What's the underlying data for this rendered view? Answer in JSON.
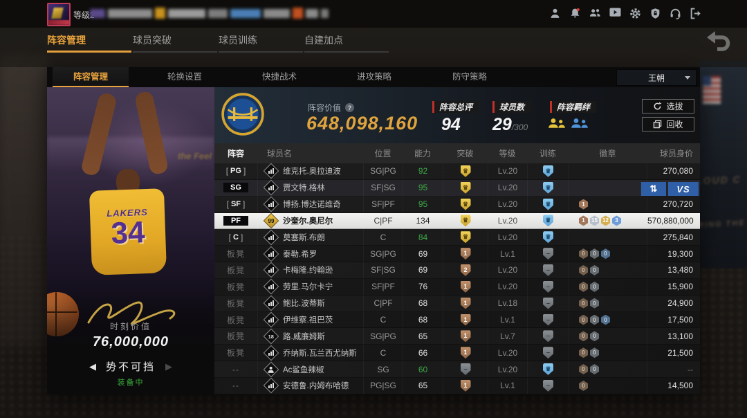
{
  "page": {
    "bg_texts": [
      "LOUD C",
      "RING THE"
    ]
  },
  "top_bar": {
    "level_prefix": "等级2",
    "icons": [
      "profile-icon",
      "notification-bell-icon",
      "friends-icon",
      "video-icon",
      "settings-gear-icon",
      "security-shield-icon",
      "support-headset-icon",
      "exit-icon"
    ]
  },
  "nav_tabs": [
    {
      "label": "阵容管理",
      "active": true
    },
    {
      "label": "球员突破",
      "active": false
    },
    {
      "label": "球员训练",
      "active": false
    },
    {
      "label": "自建加点",
      "active": false
    }
  ],
  "sub_tabs": [
    {
      "label": "阵容管理",
      "active": true
    },
    {
      "label": "轮换设置",
      "active": false
    },
    {
      "label": "快捷战术",
      "active": false
    },
    {
      "label": "进攻策略",
      "active": false
    },
    {
      "label": "防守策略",
      "active": false
    }
  ],
  "dropdown": {
    "value": "王朝"
  },
  "summary": {
    "lineup_value_label": "阵容价值",
    "lineup_value": "648,098,160",
    "overall_label": "阵容总评",
    "overall_value": "94",
    "count_label": "球员数",
    "count_value": "29",
    "count_max": "/300",
    "synergy_label": "阵容羁绊",
    "select_label": "选拔",
    "recycle_label": "回收"
  },
  "player_card": {
    "jersey_team": "LAKERS",
    "jersey_number": "34",
    "bg_text": "the Feel",
    "moment_label": "时刻价值",
    "moment_value": "76,000,000",
    "moment_name": "势不可挡",
    "equipped_label": "装备中",
    "prev_arrow": "◀",
    "next_arrow": "▶"
  },
  "table": {
    "headers": [
      "阵容",
      "球员名",
      "位置",
      "能力",
      "突破",
      "等级",
      "训练",
      "徽章",
      "球员身价"
    ],
    "rows": [
      {
        "slot": "PG",
        "slot_style": "bracket",
        "state": "",
        "icon": "bars",
        "name": "维克托.奥拉迪波",
        "pos": "SG|PG",
        "ability": "92",
        "green": true,
        "bt": "gold",
        "bt_text": "",
        "level": "Lv.20",
        "tr": "blue",
        "medals": [],
        "value": "270,080"
      },
      {
        "slot": "SG",
        "slot_style": "solid",
        "state": "hover",
        "icon": "bars",
        "name": "贾文特.格林",
        "pos": "SF|SG",
        "ability": "95",
        "green": true,
        "bt": "gold",
        "bt_text": "",
        "level": "Lv.20",
        "tr": "blue",
        "medals": [],
        "value": "",
        "actions": {
          "swap": "⇅",
          "vs": "VS"
        }
      },
      {
        "slot": "SF",
        "slot_style": "bracket",
        "state": "",
        "icon": "bars",
        "name": "博扬.博达诺维奇",
        "pos": "SF|PF",
        "ability": "95",
        "green": true,
        "bt": "gold",
        "bt_text": "",
        "level": "Lv.20",
        "tr": "blue",
        "medals": [
          [
            "1",
            "bronze"
          ]
        ],
        "value": "270,720"
      },
      {
        "slot": "PF",
        "slot_style": "solid",
        "state": "sel",
        "icon": "r99",
        "icon_text": "99",
        "name": "沙奎尔.奥尼尔",
        "pos": "C|PF",
        "ability": "134",
        "green": false,
        "bt": "gold",
        "bt_text": "",
        "level": "Lv.20",
        "tr": "blue",
        "medals": [
          [
            "1",
            "bronze"
          ],
          [
            "15",
            "silver"
          ],
          [
            "12",
            "gold"
          ],
          [
            "3",
            "blue"
          ]
        ],
        "value": "570,880,000"
      },
      {
        "slot": "C",
        "slot_style": "bracket",
        "state": "",
        "icon": "bars",
        "name": "莫塞斯.布朗",
        "pos": "C",
        "ability": "84",
        "green": true,
        "bt": "gold",
        "bt_text": "",
        "level": "Lv.20",
        "tr": "blue",
        "medals": [],
        "value": "275,840"
      },
      {
        "slot": "板凳",
        "slot_style": "text",
        "state": "",
        "icon": "bars",
        "name": "泰勒.希罗",
        "pos": "SG|PG",
        "ability": "69",
        "green": false,
        "bt": "bronze",
        "bt_text": "1",
        "level": "Lv.1",
        "tr": "gray",
        "medals": [
          [
            "0",
            "bronze0"
          ],
          [
            "0",
            "gray0"
          ],
          [
            "0",
            "blue0"
          ]
        ],
        "value": "19,300"
      },
      {
        "slot": "板凳",
        "slot_style": "text",
        "state": "",
        "icon": "bars",
        "name": "卡梅隆.约翰逊",
        "pos": "SF|SG",
        "ability": "69",
        "green": false,
        "bt": "bronze",
        "bt_text": "2",
        "level": "Lv.20",
        "tr": "gray",
        "medals": [
          [
            "0",
            "bronze0"
          ],
          [
            "0",
            "gray0"
          ]
        ],
        "value": "13,480"
      },
      {
        "slot": "板凳",
        "slot_style": "text",
        "state": "",
        "icon": "bars",
        "name": "劳里.马尔卡宁",
        "pos": "SF|PF",
        "ability": "76",
        "green": false,
        "bt": "bronze",
        "bt_text": "1",
        "level": "Lv.20",
        "tr": "gray",
        "medals": [
          [
            "0",
            "bronze0"
          ],
          [
            "0",
            "gray0"
          ]
        ],
        "value": "15,900"
      },
      {
        "slot": "板凳",
        "slot_style": "text",
        "state": "",
        "icon": "bars",
        "name": "鲍比.波蒂斯",
        "pos": "C|PF",
        "ability": "68",
        "green": false,
        "bt": "bronze",
        "bt_text": "1",
        "level": "Lv.18",
        "tr": "gray",
        "medals": [
          [
            "0",
            "bronze0"
          ],
          [
            "0",
            "gray0"
          ]
        ],
        "value": "24,900"
      },
      {
        "slot": "板凳",
        "slot_style": "text",
        "state": "",
        "icon": "bars",
        "name": "伊维察.祖巴茨",
        "pos": "C",
        "ability": "68",
        "green": false,
        "bt": "bronze",
        "bt_text": "1",
        "level": "Lv.1",
        "tr": "gray",
        "medals": [
          [
            "0",
            "bronze0"
          ],
          [
            "0",
            "gray0"
          ],
          [
            "0",
            "blue0"
          ]
        ],
        "value": "17,500"
      },
      {
        "slot": "板凳",
        "slot_style": "text",
        "state": "",
        "icon": "n18",
        "icon_text": "18",
        "name": "路.威廉姆斯",
        "pos": "SG|PG",
        "ability": "65",
        "green": false,
        "bt": "bronze",
        "bt_text": "1",
        "level": "Lv.7",
        "tr": "gray",
        "medals": [
          [
            "0",
            "bronze0"
          ],
          [
            "0",
            "gray0"
          ]
        ],
        "value": "13,100"
      },
      {
        "slot": "板凳",
        "slot_style": "text",
        "state": "",
        "icon": "bars",
        "name": "乔纳斯.瓦兰西尤纳斯",
        "pos": "C",
        "ability": "66",
        "green": false,
        "bt": "bronze",
        "bt_text": "1",
        "level": "Lv.20",
        "tr": "gray",
        "medals": [
          [
            "0",
            "bronze0"
          ],
          [
            "0",
            "gray0"
          ]
        ],
        "value": "21,500"
      },
      {
        "slot": "--",
        "slot_style": "text",
        "state": "",
        "icon": "person",
        "name": "Ac鲨鱼辣椒",
        "pos": "SG",
        "ability": "60",
        "green": true,
        "bt": "gray",
        "bt_text": "",
        "level": "Lv.20",
        "tr": "blue",
        "medals": [
          [
            "0",
            "bronze0"
          ],
          [
            "0",
            "gray0"
          ]
        ],
        "value": "--"
      },
      {
        "slot": "--",
        "slot_style": "text",
        "state": "",
        "icon": "bars",
        "name": "安德鲁.内姆布哈德",
        "pos": "PG|SG",
        "ability": "65",
        "green": false,
        "bt": "bronze",
        "bt_text": "1",
        "level": "Lv.1",
        "tr": "gray",
        "medals": [
          [
            "0",
            "bronze0"
          ]
        ],
        "value": "14,500"
      }
    ]
  }
}
